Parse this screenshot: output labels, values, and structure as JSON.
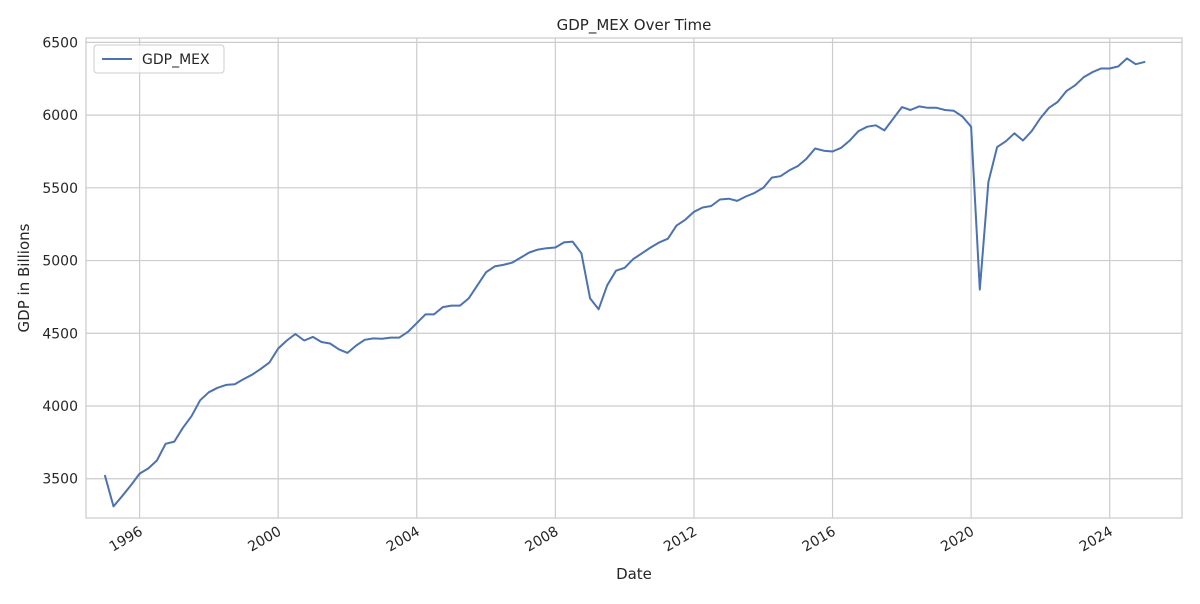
{
  "chart_data": {
    "type": "line",
    "title": "GDP_MEX Over Time",
    "xlabel": "Date",
    "ylabel": "GDP in Billions",
    "xlim": [
      "1994-06-15",
      "2026-02-01"
    ],
    "ylim": [
      3230,
      6530
    ],
    "x_ticks": [
      "1996",
      "2000",
      "2004",
      "2008",
      "2012",
      "2016",
      "2020",
      "2024"
    ],
    "y_ticks": [
      3500,
      4000,
      4500,
      5000,
      5500,
      6000,
      6500
    ],
    "grid": true,
    "legend": {
      "placement": "top-left",
      "entries": [
        "GDP_MEX"
      ]
    },
    "colors": {
      "line": "#4c72b0",
      "grid": "#cccccc",
      "axes": "#cccccc"
    },
    "series": [
      {
        "name": "GDP_MEX",
        "x": [
          "1995-01-01",
          "1995-04-01",
          "1995-07-01",
          "1995-10-01",
          "1996-01-01",
          "1996-04-01",
          "1996-07-01",
          "1996-10-01",
          "1997-01-01",
          "1997-04-01",
          "1997-07-01",
          "1997-10-01",
          "1998-01-01",
          "1998-04-01",
          "1998-07-01",
          "1998-10-01",
          "1999-01-01",
          "1999-04-01",
          "1999-07-01",
          "1999-10-01",
          "2000-01-01",
          "2000-04-01",
          "2000-07-01",
          "2000-10-01",
          "2001-01-01",
          "2001-04-01",
          "2001-07-01",
          "2001-10-01",
          "2002-01-01",
          "2002-04-01",
          "2002-07-01",
          "2002-10-01",
          "2003-01-01",
          "2003-04-01",
          "2003-07-01",
          "2003-10-01",
          "2004-01-01",
          "2004-04-01",
          "2004-07-01",
          "2004-10-01",
          "2005-01-01",
          "2005-04-01",
          "2005-07-01",
          "2005-10-01",
          "2006-01-01",
          "2006-04-01",
          "2006-07-01",
          "2006-10-01",
          "2007-01-01",
          "2007-04-01",
          "2007-07-01",
          "2007-10-01",
          "2008-01-01",
          "2008-04-01",
          "2008-07-01",
          "2008-10-01",
          "2009-01-01",
          "2009-04-01",
          "2009-07-01",
          "2009-10-01",
          "2010-01-01",
          "2010-04-01",
          "2010-07-01",
          "2010-10-01",
          "2011-01-01",
          "2011-04-01",
          "2011-07-01",
          "2011-10-01",
          "2012-01-01",
          "2012-04-01",
          "2012-07-01",
          "2012-10-01",
          "2013-01-01",
          "2013-04-01",
          "2013-07-01",
          "2013-10-01",
          "2014-01-01",
          "2014-04-01",
          "2014-07-01",
          "2014-10-01",
          "2015-01-01",
          "2015-04-01",
          "2015-07-01",
          "2015-10-01",
          "2016-01-01",
          "2016-04-01",
          "2016-07-01",
          "2016-10-01",
          "2017-01-01",
          "2017-04-01",
          "2017-07-01",
          "2017-10-01",
          "2018-01-01",
          "2018-04-01",
          "2018-07-01",
          "2018-10-01",
          "2019-01-01",
          "2019-04-01",
          "2019-07-01",
          "2019-10-01",
          "2020-01-01",
          "2020-04-01",
          "2020-07-01",
          "2020-10-01",
          "2021-01-01",
          "2021-04-01",
          "2021-07-01",
          "2021-10-01",
          "2022-01-01",
          "2022-04-01",
          "2022-07-01",
          "2022-10-01",
          "2023-01-01",
          "2023-04-01",
          "2023-07-01",
          "2023-10-01",
          "2024-01-01",
          "2024-04-01",
          "2024-07-01",
          "2024-10-01",
          "2025-01-01"
        ],
        "y": [
          3520,
          3310,
          3380,
          3455,
          3535,
          3570,
          3625,
          3740,
          3755,
          3850,
          3930,
          4040,
          4095,
          4125,
          4145,
          4150,
          4185,
          4215,
          4255,
          4300,
          4395,
          4450,
          4495,
          4450,
          4475,
          4440,
          4430,
          4390,
          4365,
          4415,
          4455,
          4465,
          4462,
          4470,
          4470,
          4510,
          4570,
          4630,
          4630,
          4680,
          4690,
          4690,
          4740,
          4830,
          4920,
          4960,
          4970,
          4985,
          5020,
          5055,
          5075,
          5085,
          5090,
          5125,
          5130,
          5050,
          4740,
          4665,
          4830,
          4930,
          4950,
          5010,
          5050,
          5090,
          5125,
          5150,
          5240,
          5280,
          5335,
          5365,
          5375,
          5420,
          5425,
          5410,
          5440,
          5465,
          5500,
          5570,
          5580,
          5620,
          5650,
          5700,
          5770,
          5755,
          5750,
          5775,
          5825,
          5890,
          5920,
          5930,
          5895,
          5975,
          6055,
          6035,
          6060,
          6050,
          6050,
          6035,
          6030,
          5990,
          5920,
          4800,
          5540,
          5780,
          5820,
          5875,
          5825,
          5890,
          5980,
          6050,
          6090,
          6165,
          6205,
          6260,
          6295,
          6320,
          6320,
          6335,
          6390,
          6350,
          6365
        ]
      }
    ]
  }
}
